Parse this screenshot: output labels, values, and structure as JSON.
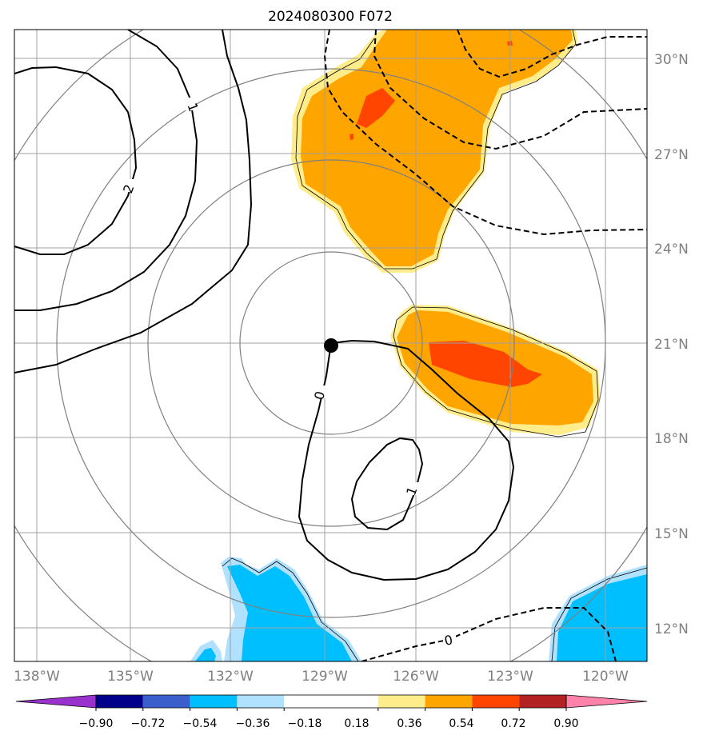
{
  "chart_data": {
    "type": "contour-map",
    "title": "2024080300 F072",
    "projection_center": {
      "lon": -128.8,
      "lat": 21.0
    },
    "axes": {
      "lon_ticks": [
        "138°W",
        "135°W",
        "132°W",
        "129°W",
        "126°W",
        "123°W",
        "120°W"
      ],
      "lat_ticks": [
        "30°N",
        "27°N",
        "24°N",
        "21°N",
        "18°N",
        "15°N",
        "12°N"
      ],
      "grid": true
    },
    "filled_field": {
      "levels": [
        -0.9,
        -0.72,
        -0.54,
        -0.36,
        -0.18,
        0.18,
        0.36,
        0.54,
        0.72,
        0.9
      ],
      "colors": [
        "#9932cc",
        "#00008b",
        "#3a5fcd",
        "#00bfff",
        "#b0e2ff",
        "#ffffff",
        "#ffec8b",
        "#ffa500",
        "#ff4500",
        "#b22222",
        "#ff82ab"
      ],
      "extend": "both",
      "regions": [
        {
          "name": "north-positive-anomaly",
          "max_value": 0.72
        },
        {
          "name": "east-positive-anomaly",
          "max_value": 0.72
        },
        {
          "name": "south-negative-anomaly",
          "min_value": -0.54
        },
        {
          "name": "southeast-negative-anomaly",
          "min_value": -0.54
        }
      ]
    },
    "line_contours": {
      "labels": [
        "1",
        "2",
        "0",
        "1",
        "0"
      ],
      "solid_levels": [
        0,
        1,
        2
      ],
      "dashed_levels": "negative"
    },
    "center_marker": {
      "lon": -128.8,
      "lat": 21.0
    },
    "colorbar": {
      "tick_labels": [
        "−0.90",
        "−0.72",
        "−0.54",
        "−0.36",
        "−0.18",
        "0.18",
        "0.36",
        "0.54",
        "0.72",
        "0.90"
      ],
      "placement": "bottom"
    }
  }
}
